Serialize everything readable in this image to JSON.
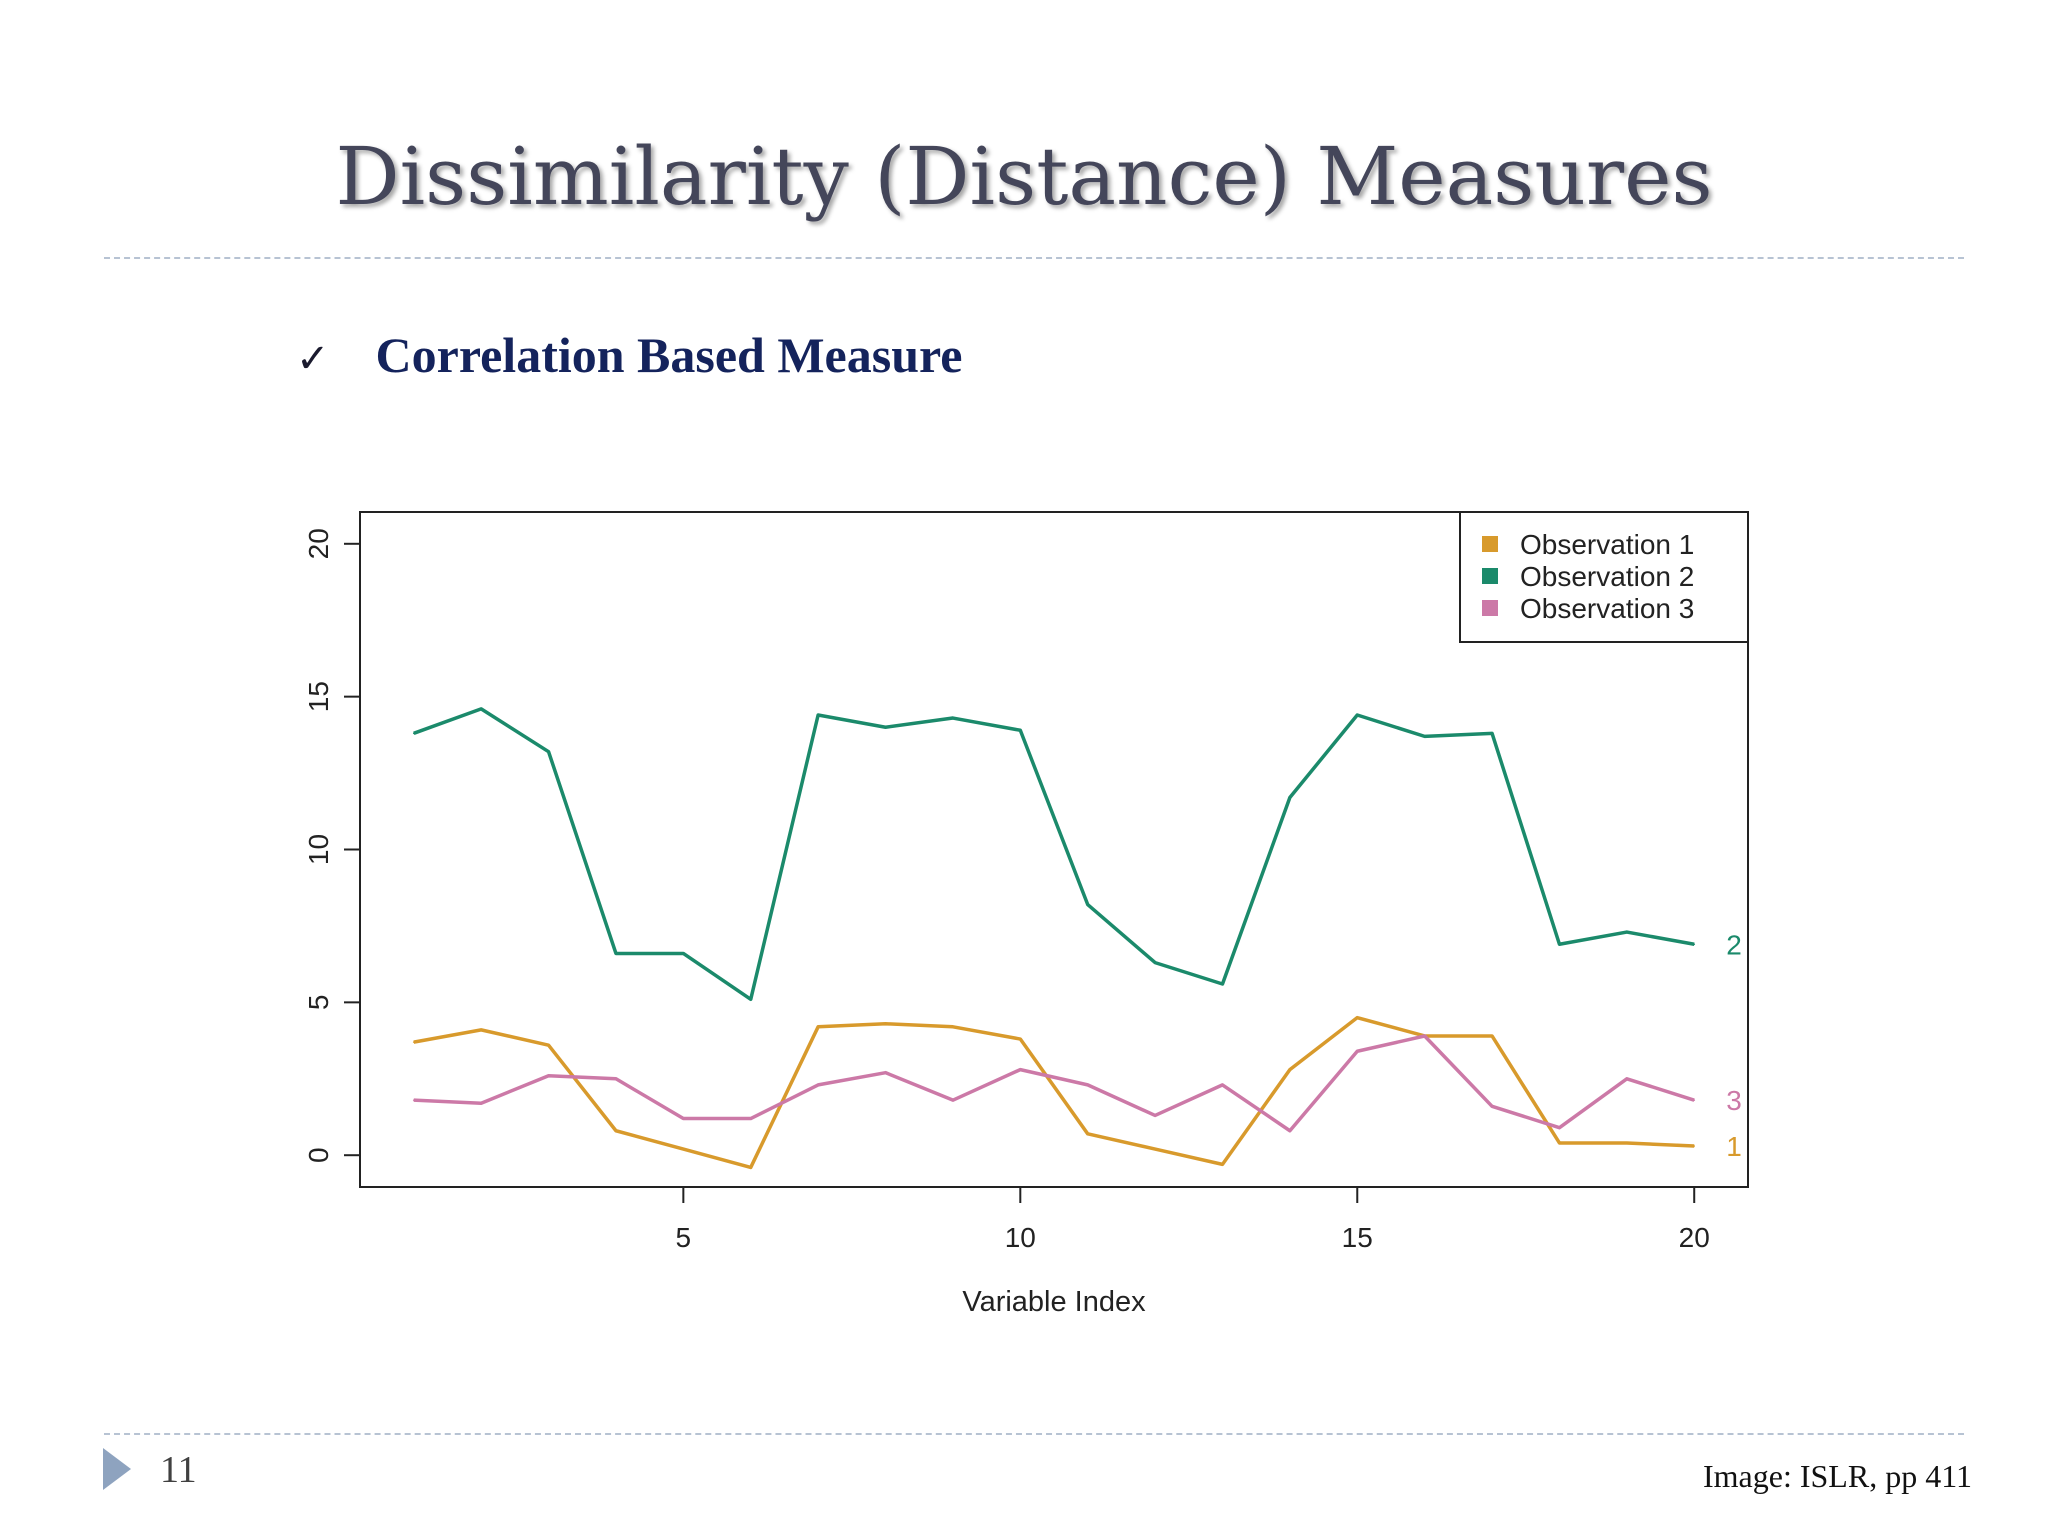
{
  "slide": {
    "title": "Dissimilarity (Distance) Measures",
    "bullet_symbol": "✓",
    "bullet_text": "Correlation Based Measure",
    "page_number": "11",
    "source_note": "Image: ISLR, pp 411"
  },
  "chart_data": {
    "type": "line",
    "title": "",
    "xlabel": "Variable Index",
    "ylabel": "",
    "xlim": [
      1,
      20
    ],
    "ylim": [
      0,
      20
    ],
    "x_ticks": [
      5,
      10,
      15,
      20
    ],
    "y_ticks": [
      0,
      5,
      10,
      15,
      20
    ],
    "x": [
      1,
      2,
      3,
      4,
      5,
      6,
      7,
      8,
      9,
      10,
      11,
      12,
      13,
      14,
      15,
      16,
      17,
      18,
      19,
      20
    ],
    "legend_position": "top-right",
    "grid": false,
    "series": [
      {
        "name": "Observation 1",
        "end_label": "1",
        "color": "#d89a2c",
        "values": [
          3.7,
          4.1,
          3.6,
          0.8,
          0.2,
          -0.4,
          4.2,
          4.3,
          4.2,
          3.8,
          0.7,
          0.2,
          -0.3,
          2.8,
          4.5,
          3.9,
          3.9,
          0.4,
          0.4,
          0.3
        ]
      },
      {
        "name": "Observation 2",
        "end_label": "2",
        "color": "#1b8a6b",
        "values": [
          13.8,
          14.6,
          13.2,
          6.6,
          6.6,
          5.1,
          14.4,
          14.0,
          14.3,
          13.9,
          8.2,
          6.3,
          5.6,
          11.7,
          14.4,
          13.7,
          13.8,
          6.9,
          7.3,
          6.9
        ]
      },
      {
        "name": "Observation 3",
        "end_label": "3",
        "color": "#cc79a7",
        "values": [
          1.8,
          1.7,
          2.6,
          2.5,
          1.2,
          1.2,
          2.3,
          2.7,
          1.8,
          2.8,
          2.3,
          1.3,
          2.3,
          0.8,
          3.4,
          3.9,
          1.6,
          0.9,
          2.5,
          1.8
        ]
      }
    ]
  }
}
